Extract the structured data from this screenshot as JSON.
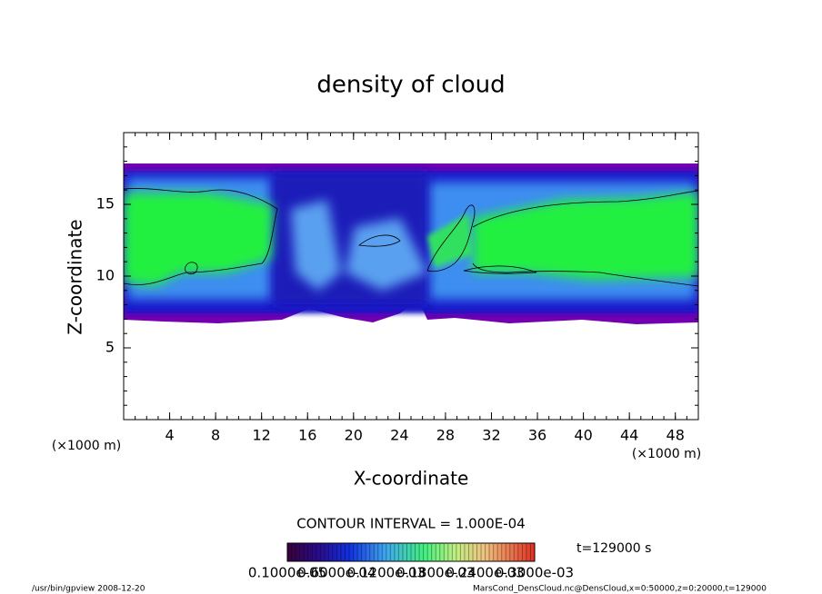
{
  "chart_data": {
    "type": "contour",
    "title": "density of cloud",
    "x_label": "X-coordinate",
    "y_label": "Z-coordinate",
    "x_unit": "(×1000 m)",
    "y_unit": "(×1000 m)",
    "xlim": [
      0,
      50
    ],
    "ylim": [
      0,
      20
    ],
    "xticks": [
      4,
      8,
      12,
      16,
      20,
      24,
      28,
      32,
      36,
      40,
      44,
      48
    ],
    "yticks": [
      5,
      10,
      15
    ],
    "contour_interval": "CONTOUR INTERVAL = 1.000E-04",
    "time_label": "t=129000 s",
    "colorbar_labels": [
      "0.1000e-05",
      "0.6000e-04",
      "0.1200e-03",
      "0.1800e-03",
      "0.2400e-03",
      "0.3000e-03"
    ],
    "footer_left": "/usr/bin/gpview   2008-12-20",
    "footer_right": "MarsCond_DensCloud.nc@DensCloud,x=0:50000,z=0:20000,t=129000"
  }
}
